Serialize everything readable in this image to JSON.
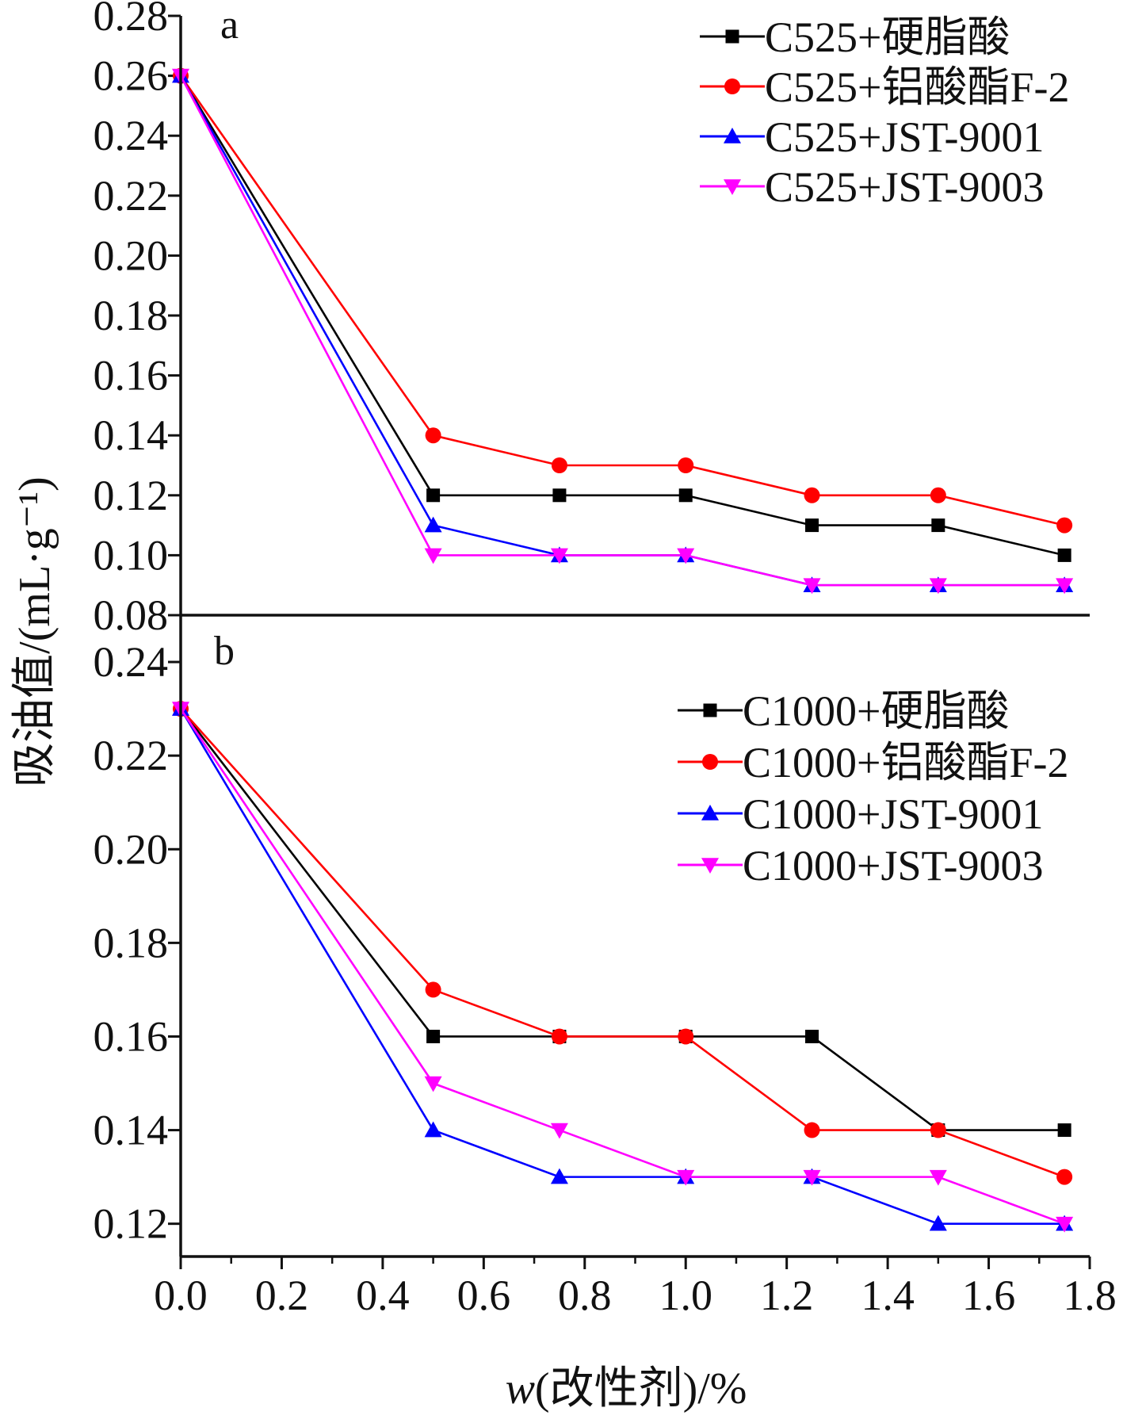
{
  "chart_data": [
    {
      "panel": "a",
      "type": "line",
      "x": [
        0.0,
        0.5,
        0.75,
        1.0,
        1.25,
        1.5,
        1.75
      ],
      "ylim": [
        0.08,
        0.28
      ],
      "xlim": [
        0.0,
        1.8
      ],
      "yticks": [
        "0.08",
        "0.10",
        "0.12",
        "0.14",
        "0.16",
        "0.18",
        "0.20",
        "0.22",
        "0.24",
        "0.26",
        "0.28"
      ],
      "legend_position": "top-right",
      "series": [
        {
          "name": "C525+硬脂酸",
          "color": "#000000",
          "marker": "square",
          "values": [
            0.26,
            0.12,
            0.12,
            0.12,
            0.11,
            0.11,
            0.1
          ]
        },
        {
          "name": "C525+铝酸酯F-2",
          "color": "#ff0000",
          "marker": "circle",
          "values": [
            0.26,
            0.14,
            0.13,
            0.13,
            0.12,
            0.12,
            0.11
          ]
        },
        {
          "name": "C525+JST-9001",
          "color": "#0000ff",
          "marker": "triangle-up",
          "values": [
            0.26,
            0.11,
            0.1,
            0.1,
            0.09,
            0.09,
            0.09
          ]
        },
        {
          "name": "C525+JST-9003",
          "color": "#ff00ff",
          "marker": "triangle-down",
          "values": [
            0.26,
            0.1,
            0.1,
            0.1,
            0.09,
            0.09,
            0.09
          ]
        }
      ]
    },
    {
      "panel": "b",
      "type": "line",
      "x": [
        0.0,
        0.5,
        0.75,
        1.0,
        1.25,
        1.5,
        1.75
      ],
      "ylim": [
        0.113,
        0.25
      ],
      "xlim": [
        0.0,
        1.8
      ],
      "yticks": [
        "0.12",
        "0.14",
        "0.16",
        "0.18",
        "0.20",
        "0.22",
        "0.24"
      ],
      "legend_position": "top-right",
      "series": [
        {
          "name": "C1000+硬脂酸",
          "color": "#000000",
          "marker": "square",
          "values": [
            0.23,
            0.16,
            0.16,
            0.16,
            0.16,
            0.14,
            0.14
          ]
        },
        {
          "name": "C1000+铝酸酯F-2",
          "color": "#ff0000",
          "marker": "circle",
          "values": [
            0.23,
            0.17,
            0.16,
            0.16,
            0.14,
            0.14,
            0.13
          ]
        },
        {
          "name": "C1000+JST-9001",
          "color": "#0000ff",
          "marker": "triangle-up",
          "values": [
            0.23,
            0.14,
            0.13,
            0.13,
            0.13,
            0.12,
            0.12
          ]
        },
        {
          "name": "C1000+JST-9003",
          "color": "#ff00ff",
          "marker": "triangle-down",
          "values": [
            0.23,
            0.15,
            0.14,
            0.13,
            0.13,
            0.13,
            0.12
          ]
        }
      ]
    }
  ],
  "xticks": [
    "0.0",
    "0.2",
    "0.4",
    "0.6",
    "0.8",
    "1.0",
    "1.2",
    "1.4",
    "1.6",
    "1.8"
  ],
  "xlabel": "w(改性剂)/%",
  "ylabel": "吸油值/(mL·g⁻¹)"
}
